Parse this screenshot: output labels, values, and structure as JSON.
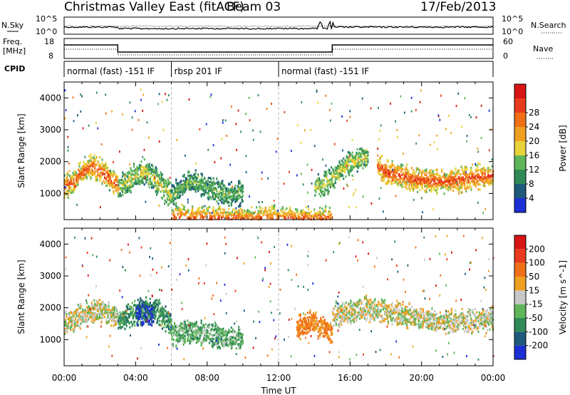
{
  "header": {
    "title": "Christmas Valley East (fitACF)",
    "beam": "Beam 03",
    "date": "17/Feb/2013"
  },
  "top_panels": {
    "nsky_label": "N.Sky",
    "nsearch_label": "N.Search",
    "noise_ticks_left": [
      "10^5",
      "10^0"
    ],
    "noise_ticks_right": [
      "10^5",
      "10^0"
    ],
    "freq_label_line1": "Freq.",
    "freq_label_line2": "[MHz]",
    "freq_ticks": [
      "18",
      "8"
    ],
    "nave_label": "Nave",
    "nave_ticks": [
      "60",
      "0"
    ],
    "cpid_label": "CPID",
    "cpid_segments": [
      {
        "label": "normal (fast) -151 IF",
        "start_h": 0,
        "end_h": 6
      },
      {
        "label": "rbsp 201 IF",
        "start_h": 6,
        "end_h": 12
      },
      {
        "label": "normal (fast) -151 IF",
        "start_h": 12,
        "end_h": 24
      }
    ]
  },
  "chart_data": [
    {
      "type": "heatmap",
      "title": "",
      "xlabel": "Time UT",
      "ylabel": "Slant Range [km]",
      "xlim": [
        0,
        24
      ],
      "ylim": [
        180,
        4500
      ],
      "x_ticks": [
        "00:00",
        "04:00",
        "08:00",
        "12:00",
        "16:00",
        "20:00",
        "00:00"
      ],
      "y_ticks": [
        "1000",
        "2000",
        "3000",
        "4000"
      ],
      "colorbar": {
        "label": "Power [dB]",
        "ticks": [
          "4",
          "8",
          "12",
          "16",
          "20",
          "24",
          "28"
        ],
        "colors": [
          "#1c2fd6",
          "#1e5a7a",
          "#2f8a57",
          "#5fb55a",
          "#e8d33a",
          "#f0a020",
          "#f07018",
          "#e83a1c",
          "#d81414"
        ]
      },
      "scatter_bands": [
        {
          "x": [
            0.0,
            0.5,
            1.0,
            1.5,
            2.0,
            2.5,
            3.0
          ],
          "y": [
            1250,
            1400,
            1700,
            1900,
            1750,
            1500,
            1300
          ],
          "power": 27
        },
        {
          "x": [
            3.0,
            3.5,
            4.0,
            4.5,
            5.0,
            5.5,
            6.0
          ],
          "y": [
            1200,
            1400,
            1600,
            1700,
            1500,
            1200,
            950
          ],
          "power": 16
        },
        {
          "x": [
            6.0,
            6.5,
            7.0,
            7.5,
            8.0,
            8.5,
            9.0,
            10.0
          ],
          "y": [
            950,
            1200,
            1400,
            1350,
            1200,
            1100,
            1000,
            1050
          ],
          "power": 12
        },
        {
          "x": [
            6.0,
            7.0,
            8.0,
            9.0,
            10.0,
            11.0,
            12.0,
            13.0,
            14.0,
            15.0
          ],
          "y": [
            280,
            260,
            250,
            250,
            240,
            240,
            240,
            240,
            240,
            240
          ],
          "power": 26
        },
        {
          "x": [
            14.0,
            14.5,
            15.0,
            15.5,
            16.0,
            16.5,
            17.0
          ],
          "y": [
            1200,
            1300,
            1500,
            1800,
            2000,
            2100,
            2150
          ],
          "power": 16
        },
        {
          "x": [
            17.5,
            18.0,
            19.0,
            20.0,
            21.0,
            22.0,
            23.0,
            24.0
          ],
          "y": [
            1900,
            1700,
            1550,
            1450,
            1400,
            1450,
            1550,
            1600
          ],
          "power": 28
        }
      ]
    },
    {
      "type": "heatmap",
      "title": "",
      "xlabel": "Time UT",
      "ylabel": "Slant Range [km]",
      "xlim": [
        0,
        24
      ],
      "ylim": [
        180,
        4500
      ],
      "x_ticks": [
        "00:00",
        "04:00",
        "08:00",
        "12:00",
        "16:00",
        "20:00",
        "00:00"
      ],
      "y_ticks": [
        "1000",
        "2000",
        "3000",
        "4000"
      ],
      "colorbar": {
        "label": "Velocity [m s^-1]",
        "ticks": [
          "200",
          "100",
          "50",
          "15",
          "-15",
          "-50",
          "-100",
          "-200"
        ],
        "colors": [
          "#1c2fd6",
          "#1e5a7a",
          "#2f8a57",
          "#5fb55a",
          "#c8c8c8",
          "#f0a020",
          "#f07018",
          "#e83a1c",
          "#d81414"
        ]
      },
      "scatter_bands": [
        {
          "x": [
            0.0,
            1.0,
            2.0,
            3.0
          ],
          "y": [
            1500,
            1800,
            2000,
            1700
          ],
          "velocity": 0
        },
        {
          "x": [
            3.0,
            4.0,
            5.0,
            6.0
          ],
          "y": [
            1600,
            1900,
            2000,
            1500
          ],
          "velocity": 70
        },
        {
          "x": [
            4.0,
            4.5,
            5.0
          ],
          "y": [
            1900,
            1850,
            1800
          ],
          "velocity": 200
        },
        {
          "x": [
            6.0,
            7.0,
            8.0,
            9.0,
            10.0
          ],
          "y": [
            1200,
            1300,
            1200,
            1100,
            1050
          ],
          "velocity": 40
        },
        {
          "x": [
            13.0,
            14.0,
            15.0
          ],
          "y": [
            1400,
            1600,
            1200
          ],
          "velocity": -60
        },
        {
          "x": [
            15.0,
            17.0,
            19.0,
            21.0,
            23.0,
            24.0
          ],
          "y": [
            1800,
            2000,
            1800,
            1600,
            1600,
            1700
          ],
          "velocity": 0
        }
      ]
    }
  ]
}
